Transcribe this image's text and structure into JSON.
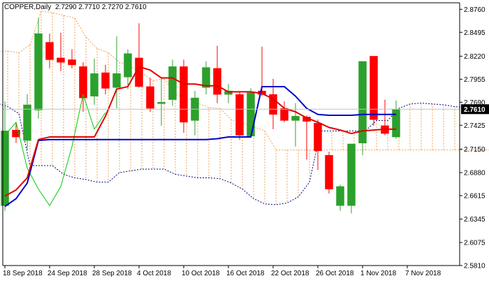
{
  "header": {
    "symbol_label": "COPPER,Daily",
    "ohlc_text": "2.7290 2.7710 2.7270 2.7610"
  },
  "colors": {
    "background": "#ffffff",
    "bull": "#2ca02c",
    "bear": "#ff0000",
    "tenkan": "#e00000",
    "kijun": "#0000cc",
    "chikou": "#00cc00",
    "cloud_hatch": "#f0a050",
    "span_b": "#000080",
    "price_label_bg": "#000000",
    "price_label_text": "#ffffff",
    "axis": "#000000"
  },
  "chart_data": {
    "type": "candlestick",
    "title": "COPPER,Daily",
    "ylim": [
      2.581,
      2.8835
    ],
    "y_ticks": [
      "2.8760",
      "2.8495",
      "2.8220",
      "2.7955",
      "2.7690",
      "2.7425",
      "2.7150",
      "2.6880",
      "2.6615",
      "2.6345",
      "2.6075",
      "2.5810"
    ],
    "current_price": "2.7610",
    "x_labels": [
      "18 Sep 2018",
      "24 Sep 2018",
      "28 Sep 2018",
      "4 Oct 2018",
      "10 Oct 2018",
      "16 Oct 2018",
      "22 Oct 2018",
      "26 Oct 2018",
      "1 Nov 2018",
      "7 Nov 2018"
    ],
    "x_label_bars": [
      0,
      4,
      8,
      12,
      16,
      20,
      24,
      28,
      32,
      36
    ],
    "candles": [
      {
        "o": 2.65,
        "h": 2.77,
        "l": 2.644,
        "c": 2.736
      },
      {
        "o": 2.737,
        "h": 2.745,
        "l": 2.722,
        "c": 2.729
      },
      {
        "o": 2.725,
        "h": 2.778,
        "l": 2.714,
        "c": 2.766
      },
      {
        "o": 2.76,
        "h": 2.866,
        "l": 2.75,
        "c": 2.848
      },
      {
        "o": 2.838,
        "h": 2.848,
        "l": 2.808,
        "c": 2.818
      },
      {
        "o": 2.82,
        "h": 2.849,
        "l": 2.805,
        "c": 2.815
      },
      {
        "o": 2.818,
        "h": 2.83,
        "l": 2.808,
        "c": 2.812
      },
      {
        "o": 2.81,
        "h": 2.815,
        "l": 2.758,
        "c": 2.774
      },
      {
        "o": 2.776,
        "h": 2.819,
        "l": 2.766,
        "c": 2.802
      },
      {
        "o": 2.803,
        "h": 2.812,
        "l": 2.778,
        "c": 2.785
      },
      {
        "o": 2.786,
        "h": 2.845,
        "l": 2.762,
        "c": 2.802
      },
      {
        "o": 2.798,
        "h": 2.83,
        "l": 2.784,
        "c": 2.825
      },
      {
        "o": 2.82,
        "h": 2.86,
        "l": 2.786,
        "c": 2.787
      },
      {
        "o": 2.787,
        "h": 2.797,
        "l": 2.758,
        "c": 2.762
      },
      {
        "o": 2.768,
        "h": 2.796,
        "l": 2.742,
        "c": 2.769
      },
      {
        "o": 2.772,
        "h": 2.818,
        "l": 2.765,
        "c": 2.81
      },
      {
        "o": 2.81,
        "h": 2.818,
        "l": 2.734,
        "c": 2.746
      },
      {
        "o": 2.748,
        "h": 2.782,
        "l": 2.731,
        "c": 2.774
      },
      {
        "o": 2.786,
        "h": 2.816,
        "l": 2.778,
        "c": 2.809
      },
      {
        "o": 2.808,
        "h": 2.834,
        "l": 2.768,
        "c": 2.778
      },
      {
        "o": 2.778,
        "h": 2.79,
        "l": 2.768,
        "c": 2.782
      },
      {
        "o": 2.778,
        "h": 2.781,
        "l": 2.726,
        "c": 2.731
      },
      {
        "o": 2.73,
        "h": 2.785,
        "l": 2.728,
        "c": 2.78
      },
      {
        "o": 2.782,
        "h": 2.833,
        "l": 2.776,
        "c": 2.778
      },
      {
        "o": 2.778,
        "h": 2.796,
        "l": 2.738,
        "c": 2.755
      },
      {
        "o": 2.762,
        "h": 2.77,
        "l": 2.746,
        "c": 2.748
      },
      {
        "o": 2.748,
        "h": 2.768,
        "l": 2.718,
        "c": 2.753
      },
      {
        "o": 2.752,
        "h": 2.754,
        "l": 2.703,
        "c": 2.747
      },
      {
        "o": 2.745,
        "h": 2.749,
        "l": 2.691,
        "c": 2.713
      },
      {
        "o": 2.708,
        "h": 2.712,
        "l": 2.664,
        "c": 2.669
      },
      {
        "o": 2.65,
        "h": 2.674,
        "l": 2.644,
        "c": 2.672
      },
      {
        "o": 2.65,
        "h": 2.718,
        "l": 2.641,
        "c": 2.721
      },
      {
        "o": 2.722,
        "h": 2.816,
        "l": 2.708,
        "c": 2.816
      },
      {
        "o": 2.822,
        "h": 2.822,
        "l": 2.742,
        "c": 2.749
      },
      {
        "o": 2.742,
        "h": 2.772,
        "l": 2.731,
        "c": 2.733
      },
      {
        "o": 2.729,
        "h": 2.771,
        "l": 2.727,
        "c": 2.761
      }
    ],
    "tenkan": [
      [
        0,
        2.661
      ],
      [
        1,
        2.668
      ],
      [
        2,
        2.682
      ],
      [
        3,
        2.726
      ],
      [
        4,
        2.729
      ],
      [
        5,
        2.729
      ],
      [
        6,
        2.729
      ],
      [
        7,
        2.729
      ],
      [
        8,
        2.729
      ],
      [
        9,
        2.753
      ],
      [
        10,
        2.784
      ],
      [
        11,
        2.787
      ],
      [
        12,
        2.81
      ],
      [
        13,
        2.806
      ],
      [
        14,
        2.797
      ],
      [
        15,
        2.797
      ],
      [
        16,
        2.79
      ],
      [
        17,
        2.79
      ],
      [
        18,
        2.788
      ],
      [
        19,
        2.788
      ],
      [
        20,
        2.781
      ],
      [
        21,
        2.781
      ],
      [
        22,
        2.781
      ],
      [
        23,
        2.779
      ],
      [
        24,
        2.773
      ],
      [
        25,
        2.762
      ],
      [
        26,
        2.758
      ],
      [
        27,
        2.751
      ],
      [
        28,
        2.746
      ],
      [
        29,
        2.74
      ],
      [
        30,
        2.737
      ],
      [
        31,
        2.733
      ],
      [
        32,
        2.736
      ],
      [
        33,
        2.737
      ],
      [
        34,
        2.738
      ],
      [
        35,
        2.738
      ]
    ],
    "kijun": [
      [
        0,
        2.649
      ],
      [
        1,
        2.658
      ],
      [
        2,
        2.676
      ],
      [
        3,
        2.725
      ],
      [
        4,
        2.726
      ],
      [
        5,
        2.726
      ],
      [
        6,
        2.726
      ],
      [
        7,
        2.726
      ],
      [
        8,
        2.726
      ],
      [
        9,
        2.726
      ],
      [
        10,
        2.726
      ],
      [
        11,
        2.726
      ],
      [
        12,
        2.726
      ],
      [
        13,
        2.726
      ],
      [
        14,
        2.726
      ],
      [
        15,
        2.726
      ],
      [
        16,
        2.726
      ],
      [
        17,
        2.726
      ],
      [
        18,
        2.726
      ],
      [
        19,
        2.727
      ],
      [
        20,
        2.729
      ],
      [
        21,
        2.729
      ],
      [
        22,
        2.729
      ],
      [
        23,
        2.787
      ],
      [
        24,
        2.787
      ],
      [
        25,
        2.787
      ],
      [
        26,
        2.776
      ],
      [
        27,
        2.762
      ],
      [
        28,
        2.755
      ],
      [
        29,
        2.754
      ],
      [
        30,
        2.754
      ],
      [
        31,
        2.754
      ],
      [
        32,
        2.755
      ],
      [
        33,
        2.755
      ],
      [
        34,
        2.755
      ],
      [
        35,
        2.755
      ]
    ],
    "chikou": [
      [
        0,
        2.731
      ],
      [
        1,
        2.746
      ],
      [
        2,
        2.693
      ],
      [
        3,
        2.669
      ],
      [
        4,
        2.65
      ],
      [
        5,
        2.672
      ],
      [
        6,
        2.718
      ],
      [
        7,
        2.778
      ],
      [
        8,
        2.738
      ],
      [
        9,
        2.757
      ]
    ],
    "span_a": [
      [
        -1,
        2.827
      ],
      [
        0,
        2.828
      ],
      [
        1,
        2.826
      ],
      [
        2,
        2.835
      ],
      [
        3,
        2.874
      ],
      [
        4,
        2.872
      ],
      [
        5,
        2.869
      ],
      [
        6,
        2.866
      ],
      [
        7,
        2.844
      ],
      [
        8,
        2.831
      ],
      [
        9,
        2.826
      ],
      [
        10,
        2.815
      ],
      [
        11,
        2.81
      ],
      [
        12,
        2.803
      ],
      [
        13,
        2.794
      ],
      [
        14,
        2.796
      ],
      [
        15,
        2.778
      ],
      [
        16,
        2.774
      ],
      [
        17,
        2.768
      ],
      [
        18,
        2.763
      ],
      [
        19,
        2.762
      ],
      [
        20,
        2.749
      ],
      [
        21,
        2.745
      ],
      [
        22,
        2.741
      ],
      [
        23,
        2.736
      ],
      [
        24,
        2.714
      ],
      [
        25,
        2.714
      ],
      [
        26,
        2.714
      ],
      [
        27,
        2.714
      ],
      [
        28,
        2.714
      ],
      [
        29,
        2.714
      ],
      [
        30,
        2.714
      ],
      [
        31,
        2.714
      ],
      [
        32,
        2.714
      ],
      [
        33,
        2.714
      ],
      [
        34,
        2.714
      ],
      [
        35,
        2.714
      ],
      [
        36,
        2.714
      ],
      [
        37,
        2.714
      ],
      [
        38,
        2.714
      ],
      [
        39,
        2.714
      ],
      [
        40,
        2.714
      ],
      [
        41,
        2.714
      ],
      [
        42,
        2.714
      ],
      [
        43,
        2.714
      ],
      [
        44,
        2.714
      ],
      [
        45,
        2.714
      ],
      [
        46,
        2.714
      ]
    ],
    "span_b": [
      [
        -1,
        2.768
      ],
      [
        0,
        2.764
      ],
      [
        1,
        2.756
      ],
      [
        2,
        2.696
      ],
      [
        3,
        2.696
      ],
      [
        4,
        2.696
      ],
      [
        5,
        2.686
      ],
      [
        6,
        2.682
      ],
      [
        7,
        2.68
      ],
      [
        8,
        2.677
      ],
      [
        9,
        2.677
      ],
      [
        10,
        2.688
      ],
      [
        11,
        2.69
      ],
      [
        12,
        2.692
      ],
      [
        13,
        2.692
      ],
      [
        14,
        2.692
      ],
      [
        15,
        2.686
      ],
      [
        16,
        2.684
      ],
      [
        17,
        2.682
      ],
      [
        18,
        2.682
      ],
      [
        19,
        2.681
      ],
      [
        20,
        2.676
      ],
      [
        21,
        2.669
      ],
      [
        22,
        2.658
      ],
      [
        23,
        2.652
      ],
      [
        24,
        2.651
      ],
      [
        25,
        2.653
      ],
      [
        26,
        2.66
      ],
      [
        27,
        2.677
      ],
      [
        28,
        2.736
      ],
      [
        29,
        2.736
      ],
      [
        30,
        2.736
      ],
      [
        31,
        2.736
      ],
      [
        32,
        2.736
      ],
      [
        33,
        2.748
      ],
      [
        34,
        2.748
      ],
      [
        35,
        2.762
      ],
      [
        36,
        2.767
      ],
      [
        37,
        2.768
      ],
      [
        38,
        2.767
      ],
      [
        39,
        2.766
      ],
      [
        40,
        2.764
      ],
      [
        41,
        2.763
      ],
      [
        42,
        2.762
      ],
      [
        43,
        2.761
      ],
      [
        44,
        2.761
      ],
      [
        45,
        2.761
      ],
      [
        46,
        2.761
      ]
    ]
  }
}
